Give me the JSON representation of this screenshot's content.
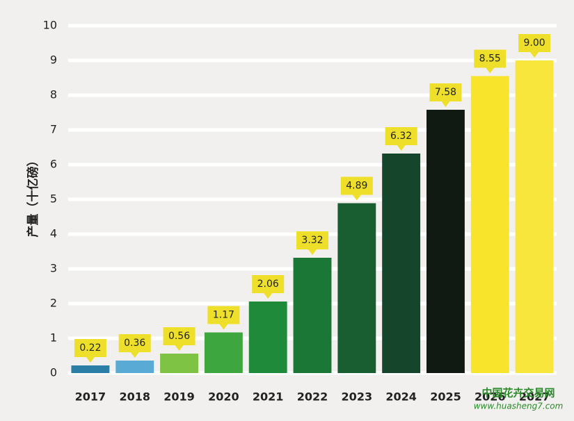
{
  "chart_data": {
    "type": "bar",
    "y_label": "产量（十亿磅）",
    "categories": [
      "2017",
      "2018",
      "2019",
      "2020",
      "2021",
      "2022",
      "2023",
      "2024",
      "2025",
      "2026",
      "2027"
    ],
    "values": [
      0.22,
      0.36,
      0.56,
      1.17,
      2.06,
      3.32,
      4.89,
      6.32,
      7.58,
      8.55,
      9.0
    ],
    "value_labels": [
      "0.22",
      "0.36",
      "0.56",
      "1.17",
      "2.06",
      "3.32",
      "4.89",
      "6.32",
      "7.58",
      "8.55",
      "9.00"
    ],
    "colors": [
      "#2b7ea6",
      "#5aaad6",
      "#7ec343",
      "#3ea63e",
      "#1f8b3a",
      "#1a7735",
      "#185e30",
      "#15452a",
      "#111a12",
      "#f7e42b",
      "#f9e63c"
    ],
    "label_color": "#eedf2a",
    "ylim": [
      0,
      10
    ],
    "yticks": [
      0,
      1,
      2,
      3,
      4,
      5,
      6,
      7,
      8,
      9,
      10
    ],
    "grid": true
  },
  "watermark": {
    "name": "中国花卉交易网",
    "url": "www.huasheng7.com"
  }
}
